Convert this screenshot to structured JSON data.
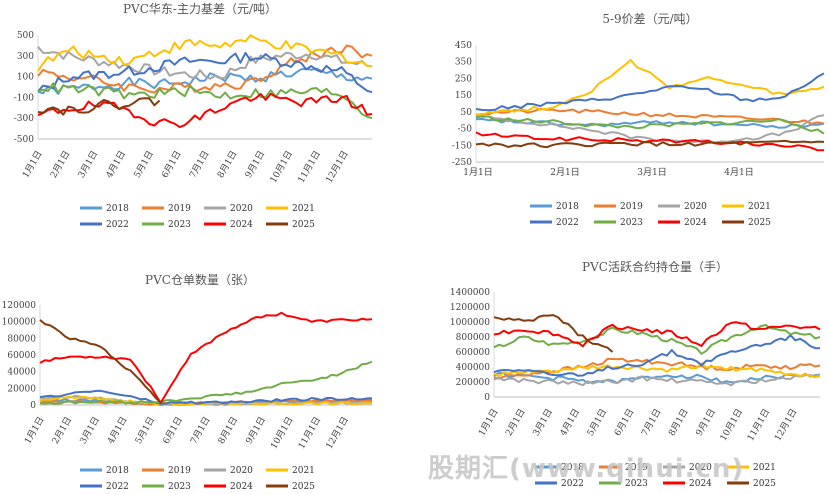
{
  "watermark": "股期汇(www.qihui.cn)",
  "legend": {
    "years": [
      "2018",
      "2019",
      "2020",
      "2021",
      "2022",
      "2023",
      "2024",
      "2025"
    ],
    "colors": [
      "#5b9bd5",
      "#ed7d31",
      "#a5a5a5",
      "#ffc000",
      "#4472c4",
      "#70ad47",
      "#ff0000",
      "#843c0c"
    ]
  },
  "chart_data": [
    {
      "type": "line",
      "title": "PVC华东-主力基差（元/吨）",
      "yticks": [
        "500",
        "300",
        "100",
        "-100",
        "-300",
        "-500"
      ],
      "ylim": [
        -500,
        500
      ],
      "xticks": [
        "1月1日",
        "2月1日",
        "3月1日",
        "4月1日",
        "5月1日",
        "6月1日",
        "7月1日",
        "8月1日",
        "9月1日",
        "10月1日",
        "11月1日",
        "12月1日"
      ],
      "series": [
        {
          "name": "2018",
          "values": [
            -50,
            -20,
            10,
            40,
            20,
            60,
            100,
            80,
            120,
            150,
            100,
            80
          ]
        },
        {
          "name": "2019",
          "values": [
            150,
            100,
            60,
            0,
            -20,
            0,
            20,
            40,
            200,
            300,
            380,
            300
          ]
        },
        {
          "name": "2020",
          "values": [
            380,
            300,
            250,
            200,
            150,
            120,
            100,
            250,
            300,
            320,
            250,
            200
          ]
        },
        {
          "name": "2021",
          "values": [
            200,
            350,
            300,
            250,
            350,
            420,
            400,
            450,
            400,
            350,
            300,
            200
          ]
        },
        {
          "name": "2022",
          "values": [
            -50,
            100,
            120,
            150,
            200,
            250,
            250,
            300,
            250,
            200,
            150,
            -50
          ]
        },
        {
          "name": "2023",
          "values": [
            0,
            -20,
            -40,
            -80,
            -60,
            -40,
            -80,
            -60,
            -60,
            -40,
            -60,
            -300
          ]
        },
        {
          "name": "2024",
          "values": [
            -280,
            -200,
            -180,
            -220,
            -350,
            -330,
            -200,
            -100,
            -120,
            -150,
            -100,
            -260
          ]
        },
        {
          "name": "2025",
          "values": [
            -200,
            -220,
            -180,
            -150,
            -130
          ]
        }
      ]
    },
    {
      "type": "line",
      "title": "5-9价差（元/吨）",
      "yticks": [
        "450",
        "350",
        "250",
        "150",
        "50",
        "-50",
        "-150",
        "-250"
      ],
      "ylim": [
        -250,
        450
      ],
      "xticks": [
        "1月1日",
        "2月1日",
        "3月1日",
        "4月1日"
      ],
      "series": [
        {
          "name": "2018",
          "values": [
            0,
            -10,
            -20,
            -30,
            -20,
            -10,
            -20,
            -30,
            -40,
            -20
          ]
        },
        {
          "name": "2019",
          "values": [
            40,
            50,
            60,
            50,
            40,
            30,
            20,
            10,
            0,
            -20
          ]
        },
        {
          "name": "2020",
          "values": [
            20,
            0,
            -30,
            -60,
            -100,
            -120,
            -130,
            -110,
            -80,
            30
          ]
        },
        {
          "name": "2021",
          "values": [
            40,
            60,
            80,
            180,
            350,
            200,
            250,
            200,
            150,
            200
          ]
        },
        {
          "name": "2022",
          "values": [
            60,
            80,
            100,
            120,
            150,
            200,
            180,
            120,
            140,
            280
          ]
        },
        {
          "name": "2023",
          "values": [
            20,
            0,
            -10,
            -30,
            -40,
            -30,
            -20,
            -10,
            0,
            -80
          ]
        },
        {
          "name": "2024",
          "values": [
            -80,
            -100,
            -110,
            -115,
            -120,
            -125,
            -130,
            -140,
            -150,
            -180
          ]
        },
        {
          "name": "2025",
          "values": [
            -140,
            -150,
            -150,
            -145,
            -140,
            -145,
            -140,
            -140,
            -135,
            -130
          ]
        }
      ]
    },
    {
      "type": "line",
      "title": "PVC仓单数量（张）",
      "yticks": [
        "120000",
        "100000",
        "80000",
        "60000",
        "40000",
        "20000",
        "0"
      ],
      "ylim": [
        0,
        120000
      ],
      "xticks": [
        "1月1日",
        "2月1日",
        "3月1日",
        "4月1日",
        "5月1日",
        "6月1日",
        "7月1日",
        "8月1日",
        "9月1日",
        "10月1日",
        "11月1日",
        "12月1日"
      ],
      "series": [
        {
          "name": "2018",
          "values": [
            5000,
            6000,
            5000,
            3000,
            1000,
            2000,
            3000,
            3000,
            4000,
            5000,
            5000,
            6000
          ]
        },
        {
          "name": "2019",
          "values": [
            3000,
            4000,
            3000,
            2000,
            1000,
            2000,
            3000,
            4000,
            4000,
            5000,
            5000,
            5000
          ]
        },
        {
          "name": "2020",
          "values": [
            8000,
            10000,
            8000,
            4000,
            1000,
            1000,
            1000,
            2000,
            2000,
            3000,
            3000,
            3000
          ]
        },
        {
          "name": "2021",
          "values": [
            6000,
            9000,
            8000,
            4000,
            1000,
            1000,
            2000,
            2000,
            2000,
            2000,
            2000,
            2000
          ]
        },
        {
          "name": "2022",
          "values": [
            8000,
            14000,
            17000,
            10000,
            2000,
            3000,
            3000,
            4000,
            6000,
            7000,
            7000,
            8000
          ]
        },
        {
          "name": "2023",
          "values": [
            2000,
            3000,
            4000,
            3000,
            4000,
            8000,
            12000,
            16000,
            25000,
            30000,
            38000,
            52000
          ]
        },
        {
          "name": "2024",
          "values": [
            52000,
            58000,
            58000,
            55000,
            4000,
            60000,
            85000,
            103000,
            110000,
            100000,
            102000,
            103000
          ]
        },
        {
          "name": "2025",
          "values": [
            102000,
            80000,
            70000,
            40000,
            3000
          ]
        }
      ]
    },
    {
      "type": "line",
      "title": "PVC活跃合约持仓量（手）",
      "yticks": [
        "1400000",
        "1200000",
        "1000000",
        "800000",
        "600000",
        "400000",
        "200000",
        "0"
      ],
      "ylim": [
        0,
        1400000
      ],
      "xticks": [
        "1月1日",
        "2月1日",
        "3月1日",
        "4月1日",
        "5月1日",
        "6月1日",
        "7月1日",
        "8月1日",
        "9月1日",
        "10月1日",
        "11月1日",
        "12月1日"
      ],
      "series": [
        {
          "name": "2018",
          "values": [
            300000,
            280000,
            250000,
            220000,
            200000,
            250000,
            300000,
            260000,
            200000,
            250000,
            280000,
            300000
          ]
        },
        {
          "name": "2019",
          "values": [
            250000,
            300000,
            350000,
            400000,
            500000,
            480000,
            450000,
            400000,
            380000,
            420000,
            400000,
            420000
          ]
        },
        {
          "name": "2020",
          "values": [
            250000,
            220000,
            200000,
            180000,
            200000,
            250000,
            220000,
            200000,
            180000,
            220000,
            250000,
            300000
          ]
        },
        {
          "name": "2021",
          "values": [
            300000,
            320000,
            350000,
            380000,
            400000,
            380000,
            350000,
            420000,
            380000,
            350000,
            300000,
            280000
          ]
        },
        {
          "name": "2022",
          "values": [
            350000,
            380000,
            300000,
            280000,
            400000,
            450000,
            600000,
            450000,
            600000,
            700000,
            800000,
            650000
          ]
        },
        {
          "name": "2023",
          "values": [
            650000,
            800000,
            700000,
            750000,
            900000,
            850000,
            750000,
            600000,
            800000,
            950000,
            850000,
            800000
          ]
        },
        {
          "name": "2024",
          "values": [
            850000,
            900000,
            850000,
            700000,
            950000,
            900000,
            850000,
            700000,
            1000000,
            900000,
            950000,
            900000
          ]
        },
        {
          "name": "2025",
          "values": [
            1050000,
            1000000,
            1100000,
            800000,
            600000
          ]
        }
      ]
    }
  ]
}
